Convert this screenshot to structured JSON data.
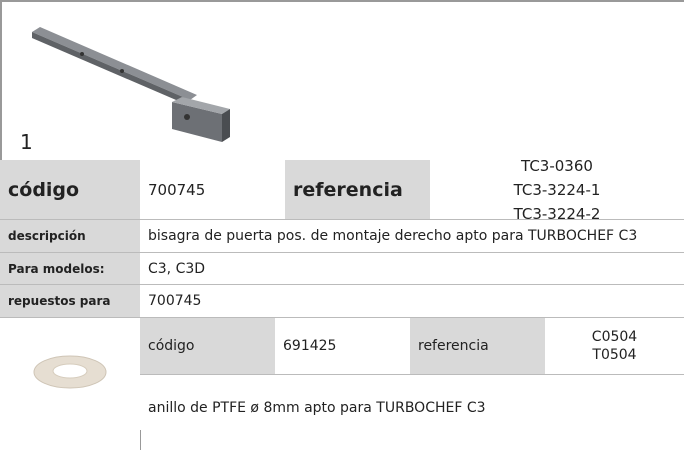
{
  "figure": {
    "label": "1"
  },
  "product": {
    "code_label": "código",
    "code": "700745",
    "reference_label": "referencia",
    "references": [
      "TC3-0360",
      "TC3-3224-1",
      "TC3-3224-2"
    ]
  },
  "rows": [
    {
      "label": "descripción",
      "value": "bisagra de puerta  pos. de montaje derecho apto para TURBOCHEF C3"
    },
    {
      "label": "Para modelos:",
      "value": "C3, C3D"
    },
    {
      "label": "repuestos para",
      "value": "700745"
    }
  ],
  "spare": {
    "code_label": "código",
    "code": "691425",
    "reference_label": "referencia",
    "references": [
      "C0504",
      "T0504"
    ],
    "description": "anillo de PTFE  ø 8mm apto para TURBOCHEF C3"
  }
}
